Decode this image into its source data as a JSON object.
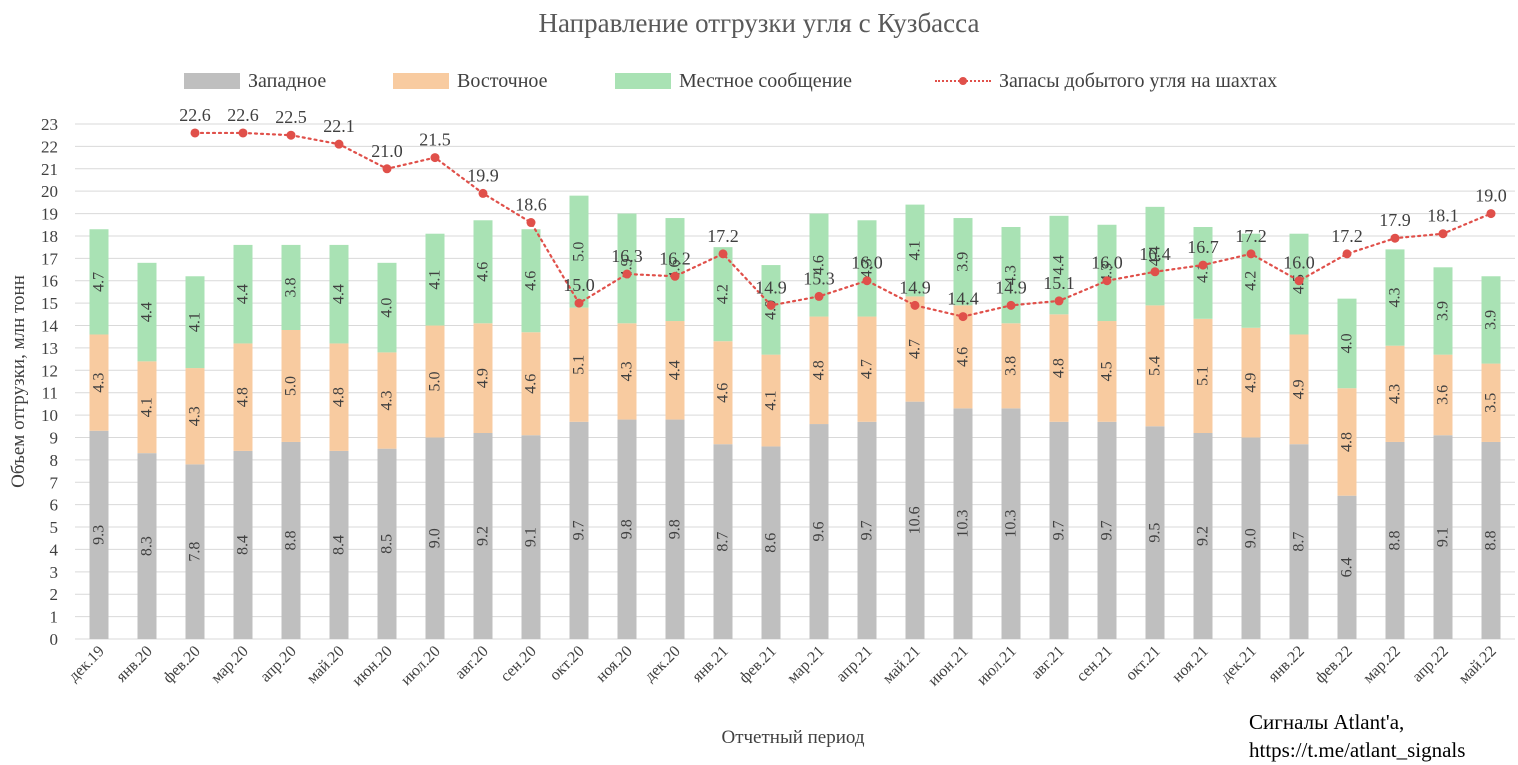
{
  "chart_data": {
    "type": "bar",
    "subtype": "stacked-bar-with-line",
    "title": "Направление отгрузки угля с Кузбасса",
    "xlabel": "Отчетный период",
    "ylabel": "Объем отгрузки, млн тонн",
    "ylim": [
      0,
      23
    ],
    "yticks": [
      0,
      1,
      2,
      3,
      4,
      5,
      6,
      7,
      8,
      9,
      10,
      11,
      12,
      13,
      14,
      15,
      16,
      17,
      18,
      19,
      20,
      21,
      22,
      23
    ],
    "grid": true,
    "legend_position": "top",
    "categories": [
      "дек.19",
      "янв.20",
      "фев.20",
      "мар.20",
      "апр.20",
      "май.20",
      "июн.20",
      "июл.20",
      "авг.20",
      "сен.20",
      "окт.20",
      "ноя.20",
      "дек.20",
      "янв.21",
      "фев.21",
      "мар.21",
      "апр.21",
      "май.21",
      "июн.21",
      "июл.21",
      "авг.21",
      "сен.21",
      "окт.21",
      "ноя.21",
      "дек.21",
      "янв.22",
      "фев.22",
      "мар.22",
      "апр.22",
      "май.22"
    ],
    "series": [
      {
        "name": "Западное",
        "kind": "bar",
        "color": "#bfbfbf",
        "values": [
          9.3,
          8.3,
          7.8,
          8.4,
          8.8,
          8.4,
          8.5,
          9.0,
          9.2,
          9.1,
          9.7,
          9.8,
          9.8,
          8.7,
          8.6,
          9.6,
          9.7,
          10.6,
          10.3,
          10.3,
          9.7,
          9.7,
          9.5,
          9.2,
          9.0,
          8.7,
          6.4,
          8.8,
          9.1,
          8.8
        ]
      },
      {
        "name": "Восточное",
        "kind": "bar",
        "color": "#f8cba0",
        "values": [
          4.3,
          4.1,
          4.3,
          4.8,
          5.0,
          4.8,
          4.3,
          5.0,
          4.9,
          4.6,
          5.1,
          4.3,
          4.4,
          4.6,
          4.1,
          4.8,
          4.7,
          4.7,
          4.6,
          3.8,
          4.8,
          4.5,
          5.4,
          5.1,
          4.9,
          4.9,
          4.8,
          4.3,
          3.6,
          3.5
        ]
      },
      {
        "name": "Местное сообщение",
        "kind": "bar",
        "color": "#a9e2b4",
        "values": [
          4.7,
          4.4,
          4.1,
          4.4,
          3.8,
          4.4,
          4.0,
          4.1,
          4.6,
          4.6,
          5.0,
          4.9,
          4.6,
          4.2,
          4.0,
          4.6,
          4.3,
          4.1,
          3.9,
          4.3,
          4.4,
          4.3,
          4.4,
          4.1,
          4.2,
          4.5,
          4.0,
          4.3,
          3.9,
          3.9
        ]
      },
      {
        "name": "Запасы добытого угля на шахтах",
        "kind": "line",
        "color": "#e0504a",
        "values": [
          null,
          null,
          22.6,
          22.6,
          22.5,
          22.1,
          21.0,
          21.5,
          19.9,
          18.6,
          15.0,
          16.3,
          16.2,
          17.2,
          14.9,
          15.3,
          16.0,
          14.9,
          14.4,
          14.9,
          15.1,
          16.0,
          16.4,
          16.7,
          17.2,
          16.0,
          17.2,
          17.9,
          18.1,
          19.0
        ],
        "labels": [
          null,
          null,
          "22.6",
          "22.6",
          "22.5",
          "22.1",
          "21.0",
          "21.5",
          "19.9",
          "18.6",
          "15.0",
          "16.3",
          "16.2",
          "17.2",
          "14.9",
          "15.3",
          "16.0",
          "14.9",
          "14.4",
          "14.9",
          "15.1",
          "16.0",
          "16.4",
          "16.7",
          "17.2",
          "16.0",
          "17.2",
          "17.9",
          "18.1",
          "19.0"
        ]
      }
    ]
  },
  "signature": {
    "line1": "Сигналы Atlant'a,",
    "line2": "https://t.me/atlant_signals"
  }
}
